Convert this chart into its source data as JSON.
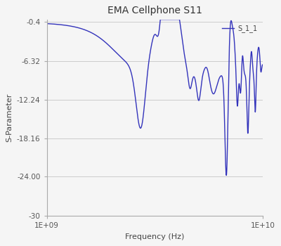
{
  "title": "EMA Cellphone S11",
  "xlabel": "Frequency (Hz)",
  "ylabel": "S-Parameter",
  "legend_label": "S_1_1",
  "xmin": 1000000000.0,
  "xmax": 10000000000.0,
  "ymin": -30,
  "ymax": 0,
  "yticks": [
    -30,
    -24.0,
    -18.16,
    -12.24,
    -6.32,
    -0.4
  ],
  "ytick_labels": [
    "-30",
    "-24.00",
    "-18.16",
    "-12.24",
    "-6.32",
    "-0.4"
  ],
  "xtick_labels": [
    "1E+09",
    "1E+10"
  ],
  "line_color": "#3333bb",
  "bg_color": "#f5f5f5",
  "title_fontsize": 10,
  "axis_fontsize": 8,
  "tick_fontsize": 7.5
}
